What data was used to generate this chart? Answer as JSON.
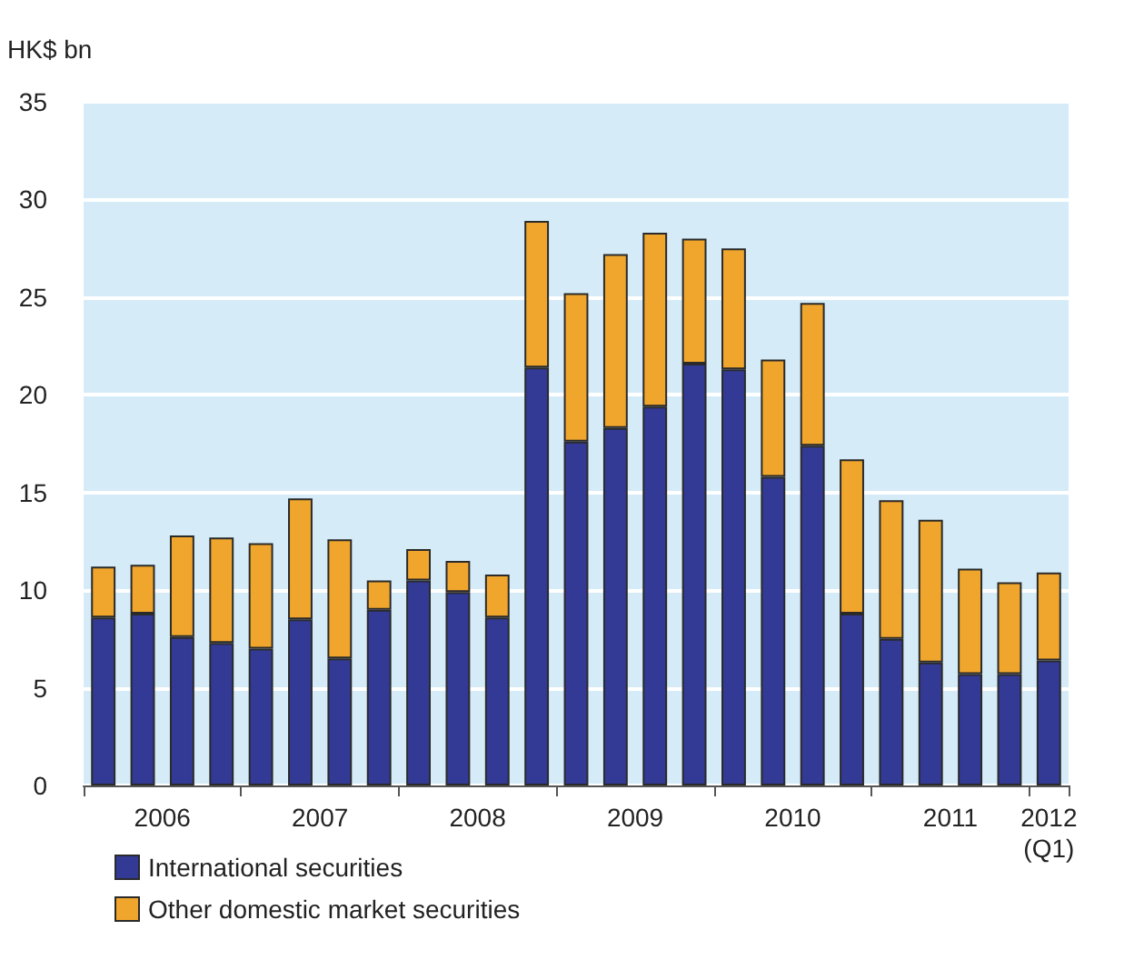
{
  "chart_data": {
    "type": "bar",
    "ylabel": "HK$ bn",
    "stacked": true,
    "categories": [
      null,
      "2006",
      null,
      null,
      null,
      "2007",
      null,
      null,
      null,
      "2008",
      null,
      null,
      null,
      "2009",
      null,
      null,
      null,
      "2010",
      null,
      null,
      null,
      "2011",
      null,
      null,
      "2012\n(Q1)"
    ],
    "series": [
      {
        "name": "International securities",
        "color": "#333a96",
        "values": [
          8.6,
          8.8,
          7.6,
          7.3,
          7.0,
          8.5,
          6.5,
          9.0,
          10.5,
          9.9,
          8.6,
          21.4,
          17.6,
          18.3,
          19.4,
          21.6,
          21.3,
          15.8,
          17.4,
          8.8,
          7.5,
          6.3,
          5.7,
          5.7,
          6.4
        ]
      },
      {
        "name": "Other domestic market securities",
        "color": "#f0a62c",
        "values": [
          2.6,
          2.5,
          5.2,
          5.4,
          5.4,
          6.2,
          6.1,
          1.5,
          1.6,
          1.6,
          2.2,
          7.5,
          7.6,
          8.9,
          8.9,
          6.4,
          6.2,
          6.0,
          7.3,
          7.9,
          7.1,
          7.3,
          5.4,
          4.7,
          4.5
        ]
      }
    ],
    "ylim": [
      0,
      35
    ],
    "yticks": [
      0,
      5,
      10,
      15,
      20,
      25,
      30,
      35
    ],
    "grid": "y",
    "legend": "bottom left"
  }
}
